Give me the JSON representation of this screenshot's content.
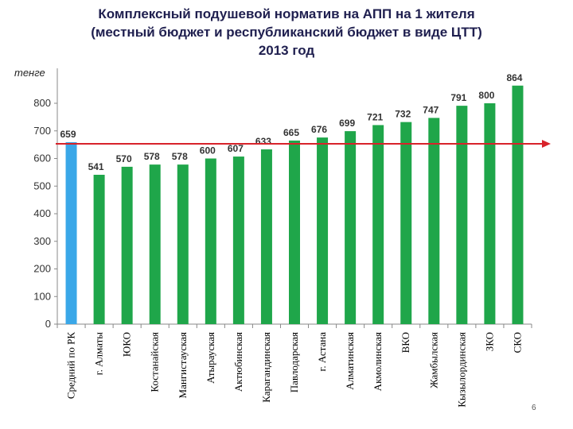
{
  "slide": {
    "title_line1": "Комплексный подушевой норматив  на АПП на 1 жителя",
    "title_line2": "(местный бюджет и республиканский бюджет в виде ЦТТ)",
    "title_line3": "2013 год",
    "page_number": "6"
  },
  "chart_data": {
    "type": "bar",
    "title": "Комплексный подушевой норматив  на АПП на 1 жителя (местный бюджет и республиканский бюджет в виде ЦТТ) 2013 год",
    "ylabel": "тенге",
    "xlabel": "",
    "ylim": [
      0,
      900
    ],
    "yticks": [
      0,
      100,
      200,
      300,
      400,
      500,
      600,
      700,
      800
    ],
    "grid": false,
    "categories": [
      "Средний по РК",
      "г. Алматы",
      "ЮКО",
      "Костанайская",
      "Мангистауская",
      "Атырауская",
      "Актюбинская",
      "Карагандинская",
      "Павлодарская",
      "г. Астана",
      "Алматинская",
      "Акмолинская",
      "ВКО",
      "Жамбылская",
      "Кызылординская",
      "ЗКО",
      "СКО"
    ],
    "values": [
      659,
      541,
      570,
      578,
      578,
      600,
      607,
      633,
      665,
      676,
      699,
      721,
      732,
      747,
      791,
      800,
      864
    ],
    "data_labels": [
      "659",
      "541",
      "570",
      "578",
      "578",
      "600",
      "607",
      "633",
      "665",
      "676",
      "699",
      "721",
      "732",
      "747",
      "791",
      "800",
      "864"
    ],
    "colors": {
      "average_bar": "#3aa7e8",
      "region_bar": "#1fa64a",
      "reference_line": "#d8232a"
    },
    "reference_line_value": 659
  }
}
